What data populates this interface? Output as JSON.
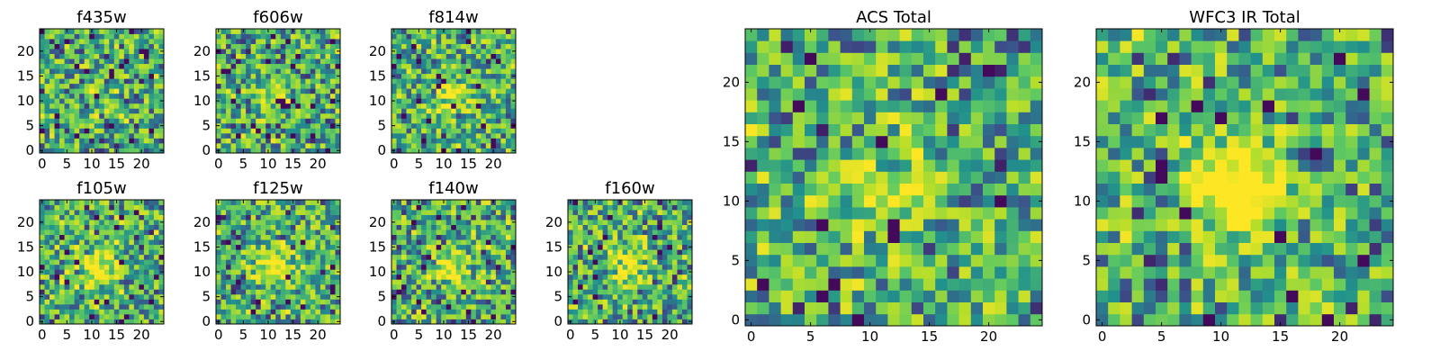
{
  "chart_data": [
    {
      "type": "heatmap",
      "title": "f435w",
      "size": 25,
      "seed": 11,
      "peak": 0.1,
      "xticks": [
        0,
        5,
        10,
        15,
        20
      ],
      "yticks": [
        0,
        5,
        10,
        15,
        20
      ]
    },
    {
      "type": "heatmap",
      "title": "f606w",
      "size": 25,
      "seed": 23,
      "peak": 0.2,
      "xticks": [
        0,
        5,
        10,
        15,
        20
      ],
      "yticks": [
        0,
        5,
        10,
        15,
        20
      ]
    },
    {
      "type": "heatmap",
      "title": "f814w",
      "size": 25,
      "seed": 37,
      "peak": 0.35,
      "xticks": [
        0,
        5,
        10,
        15,
        20
      ],
      "yticks": [
        0,
        5,
        10,
        15,
        20
      ]
    },
    {
      "type": "heatmap",
      "title": "f105w",
      "size": 25,
      "seed": 41,
      "peak": 0.5,
      "xticks": [
        0,
        5,
        10,
        15,
        20
      ],
      "yticks": [
        0,
        5,
        10,
        15,
        20
      ]
    },
    {
      "type": "heatmap",
      "title": "f125w",
      "size": 25,
      "seed": 53,
      "peak": 0.5,
      "xticks": [
        0,
        5,
        10,
        15,
        20
      ],
      "yticks": [
        0,
        5,
        10,
        15,
        20
      ]
    },
    {
      "type": "heatmap",
      "title": "f140w",
      "size": 25,
      "seed": 67,
      "peak": 0.45,
      "xticks": [
        0,
        5,
        10,
        15,
        20
      ],
      "yticks": [
        0,
        5,
        10,
        15,
        20
      ]
    },
    {
      "type": "heatmap",
      "title": "f160w",
      "size": 25,
      "seed": 79,
      "peak": 0.4,
      "xticks": [
        0,
        5,
        10,
        15,
        20
      ],
      "yticks": [
        0,
        5,
        10,
        15,
        20
      ]
    },
    {
      "type": "heatmap",
      "title": "ACS Total",
      "size": 25,
      "seed": 97,
      "peak": 0.3,
      "xticks": [
        0,
        5,
        10,
        15,
        20
      ],
      "yticks": [
        0,
        5,
        10,
        15,
        20
      ]
    },
    {
      "type": "heatmap",
      "title": "WFC3 IR Total",
      "size": 25,
      "seed": 131,
      "peak": 0.85,
      "xticks": [
        0,
        5,
        10,
        15,
        20
      ],
      "yticks": [
        0,
        5,
        10,
        15,
        20
      ]
    }
  ],
  "colormap": [
    "#440154",
    "#3b528b",
    "#21918c",
    "#5ec962",
    "#b5de2b",
    "#fde725"
  ]
}
